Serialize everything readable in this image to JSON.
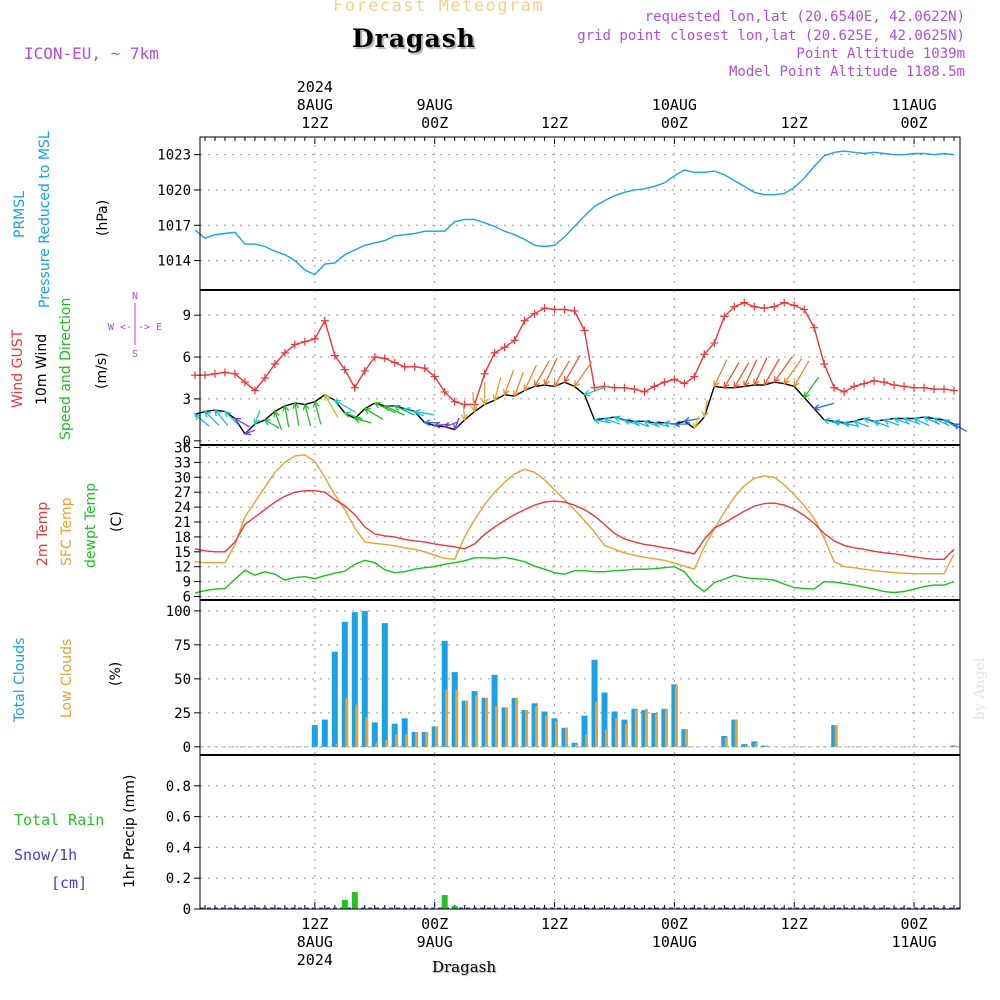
{
  "header": {
    "product": "Forecast Meteogram",
    "location": "Dragash",
    "model": "ICON-EU, ~ 7km",
    "requested": "requested lon,lat (20.6540E, 42.0622N)",
    "gridpoint": "grid point closest lon,lat (20.625E, 42.0625N)",
    "point_alt": "Point Altitude 1039m",
    "model_alt": "Model Point Altitude 1188.5m",
    "footer": "Dragash",
    "credit": "by Angel"
  },
  "colors": {
    "pressure": "#1aa1e6",
    "gust": "#e8393b",
    "wind": "#000000",
    "temp2m": "#e8393b",
    "sfctemp": "#e6a233",
    "dewpt": "#19c01e",
    "total_clouds": "#1aa1e6",
    "low_clouds": "#e6a233",
    "rain": "#25c024",
    "snow": "#3c3ccf",
    "axis_violet": "#b04fd6"
  },
  "time_axis": {
    "top_labels": [
      {
        "t": 12,
        "lines": [
          "2024",
          "8AUG",
          "12Z"
        ]
      },
      {
        "t": 24,
        "lines": [
          "9AUG",
          "00Z"
        ]
      },
      {
        "t": 36,
        "lines": [
          "12Z"
        ]
      },
      {
        "t": 48,
        "lines": [
          "10AUG",
          "00Z"
        ]
      },
      {
        "t": 60,
        "lines": [
          "12Z"
        ]
      },
      {
        "t": 72,
        "lines": [
          "11AUG",
          "00Z"
        ]
      }
    ],
    "bottom_labels": [
      {
        "t": 12,
        "lines": [
          "12Z",
          "8AUG",
          "2024"
        ]
      },
      {
        "t": 24,
        "lines": [
          "00Z",
          "9AUG"
        ]
      },
      {
        "t": 36,
        "lines": [
          "12Z"
        ]
      },
      {
        "t": 48,
        "lines": [
          "00Z",
          "10AUG"
        ]
      },
      {
        "t": 60,
        "lines": [
          "12Z"
        ]
      },
      {
        "t": 72,
        "lines": [
          "00Z",
          "11AUG"
        ]
      }
    ]
  },
  "chart_data": [
    {
      "type": "line",
      "name": "pressure",
      "ylabel_lines": [
        "PRMSL",
        "Pressure Reduced to MSL",
        "(hPa)"
      ],
      "ylim": [
        1011.5,
        1024.5
      ],
      "yticks": [
        1014,
        1017,
        1020,
        1023
      ],
      "x": [
        0,
        1,
        2,
        3,
        4,
        5,
        6,
        7,
        8,
        9,
        10,
        11,
        12,
        13,
        14,
        15,
        16,
        17,
        18,
        19,
        20,
        21,
        22,
        23,
        24,
        25,
        26,
        27,
        28,
        29,
        30,
        31,
        32,
        33,
        34,
        35,
        36,
        37,
        38,
        39,
        40,
        41,
        42,
        43,
        44,
        45,
        46,
        47,
        48,
        49,
        50,
        51,
        52,
        53,
        54,
        55,
        56,
        57,
        58,
        59,
        60,
        61,
        62,
        63,
        64,
        65,
        66,
        67,
        68,
        69,
        70,
        71,
        72,
        73,
        74,
        75,
        76
      ],
      "values": [
        1016.6,
        1015.9,
        1016.2,
        1016.3,
        1016.4,
        1015.4,
        1015.4,
        1015.2,
        1014.8,
        1014.5,
        1014.0,
        1013.2,
        1012.8,
        1013.7,
        1013.8,
        1014.5,
        1014.9,
        1015.3,
        1015.5,
        1015.7,
        1016.1,
        1016.2,
        1016.3,
        1016.5,
        1016.5,
        1016.5,
        1017.3,
        1017.5,
        1017.5,
        1017.2,
        1016.9,
        1016.5,
        1016.2,
        1015.8,
        1015.3,
        1015.2,
        1015.3,
        1016.0,
        1016.9,
        1017.8,
        1018.6,
        1019.1,
        1019.5,
        1019.8,
        1020.0,
        1020.1,
        1020.3,
        1020.6,
        1021.2,
        1021.7,
        1021.5,
        1021.5,
        1021.6,
        1021.3,
        1020.8,
        1020.3,
        1019.8,
        1019.6,
        1019.6,
        1019.7,
        1020.2,
        1021.0,
        1022.0,
        1022.9,
        1023.2,
        1023.3,
        1023.2,
        1023.1,
        1023.2,
        1023.1,
        1023.0,
        1023.0,
        1023.1,
        1023.1,
        1023.0,
        1023.1,
        1023.0
      ]
    },
    {
      "type": "line",
      "name": "wind",
      "ylabel_lines": [
        "Wind GUST",
        "10m Wind",
        "Speed and Direction",
        "(m/s)"
      ],
      "compass": [
        "N",
        "W <-|-> E",
        "S"
      ],
      "ylim": [
        -0.3,
        10.8
      ],
      "yticks": [
        0,
        3,
        6,
        9
      ],
      "gust_x": [
        0,
        1,
        2,
        3,
        4,
        5,
        6,
        7,
        8,
        9,
        10,
        11,
        12,
        13,
        14,
        15,
        16,
        17,
        18,
        19,
        20,
        21,
        22,
        23,
        24,
        25,
        26,
        27,
        28,
        29,
        30,
        31,
        32,
        33,
        34,
        35,
        36,
        37,
        38,
        39,
        40,
        41,
        42,
        43,
        44,
        45,
        46,
        47,
        48,
        49,
        50,
        51,
        52,
        53,
        54,
        55,
        56,
        57,
        58,
        59,
        60,
        61,
        62,
        63,
        64,
        65,
        66,
        67,
        68,
        69,
        70,
        71,
        72,
        73,
        74,
        75,
        76
      ],
      "gust": [
        4.7,
        4.7,
        4.8,
        4.9,
        4.8,
        4.2,
        3.6,
        4.5,
        5.5,
        6.3,
        6.9,
        7.1,
        7.3,
        8.6,
        6.1,
        5.1,
        3.8,
        5.0,
        6.0,
        5.9,
        5.6,
        5.3,
        5.3,
        5.2,
        4.6,
        3.5,
        2.8,
        2.6,
        2.6,
        4.8,
        6.3,
        6.7,
        7.2,
        8.6,
        9.1,
        9.5,
        9.4,
        9.4,
        9.3,
        7.9,
        3.8,
        3.9,
        3.8,
        3.8,
        3.7,
        3.5,
        3.9,
        4.2,
        4.4,
        4.1,
        4.6,
        6.2,
        7.0,
        8.9,
        9.6,
        9.9,
        9.6,
        9.5,
        9.6,
        9.9,
        9.7,
        9.4,
        8.1,
        5.5,
        3.8,
        3.5,
        3.9,
        4.1,
        4.3,
        4.2,
        4.0,
        3.9,
        3.8,
        3.8,
        3.7,
        3.7,
        3.6
      ],
      "wind": [
        1.9,
        2.1,
        2.2,
        2.1,
        1.6,
        0.5,
        1.2,
        1.5,
        2.1,
        2.5,
        2.7,
        2.6,
        2.8,
        3.3,
        2.9,
        2.0,
        1.6,
        2.3,
        2.7,
        2.5,
        2.5,
        2.3,
        2.1,
        1.3,
        1.1,
        1.0,
        0.8,
        1.5,
        2.1,
        2.6,
        2.9,
        3.3,
        3.2,
        3.6,
        3.9,
        4.0,
        3.9,
        4.2,
        3.9,
        3.3,
        1.5,
        1.6,
        1.7,
        1.5,
        1.4,
        1.4,
        1.3,
        1.3,
        1.2,
        1.4,
        0.9,
        1.7,
        3.9,
        3.8,
        3.8,
        3.9,
        4.0,
        4.0,
        4.2,
        4.1,
        3.9,
        3.1,
        2.3,
        1.5,
        1.4,
        1.3,
        1.4,
        1.6,
        1.4,
        1.5,
        1.6,
        1.6,
        1.6,
        1.7,
        1.6,
        1.5,
        1.2
      ],
      "arrows": {
        "x": [
          0,
          1,
          2,
          3,
          4,
          5,
          6,
          7,
          8,
          9,
          10,
          11,
          12,
          13,
          14,
          15,
          16,
          17,
          18,
          19,
          20,
          21,
          22,
          23,
          24,
          25,
          26,
          27,
          28,
          29,
          30,
          31,
          32,
          33,
          34,
          35,
          36,
          37,
          38,
          39,
          40,
          41,
          42,
          43,
          44,
          45,
          46,
          47,
          48,
          49,
          50,
          51,
          52,
          53,
          54,
          55,
          56,
          57,
          58,
          59,
          60,
          61,
          62,
          63,
          64,
          65,
          66,
          67,
          68,
          69,
          70,
          71,
          72,
          73,
          74,
          75,
          76
        ],
        "dir_deg": [
          310,
          315,
          320,
          315,
          300,
          250,
          200,
          300,
          340,
          350,
          350,
          345,
          345,
          330,
          300,
          290,
          285,
          300,
          295,
          295,
          295,
          290,
          280,
          270,
          265,
          250,
          200,
          175,
          175,
          180,
          195,
          200,
          200,
          205,
          210,
          205,
          210,
          210,
          215,
          250,
          280,
          290,
          290,
          290,
          290,
          290,
          285,
          280,
          270,
          260,
          200,
          190,
          205,
          210,
          210,
          205,
          205,
          210,
          215,
          215,
          210,
          215,
          255,
          285,
          285,
          285,
          290,
          290,
          290,
          290,
          290,
          290,
          295,
          295,
          295,
          300,
          300
        ],
        "colors": [
          "#19b7e6",
          "#19b7e6",
          "#19b7e6",
          "#1ac8c8",
          "#6a3fe0",
          "#6a3fe0",
          "#1ac8c8",
          "#21c060",
          "#21c021",
          "#21c021",
          "#21c021",
          "#21c021",
          "#21c021",
          "#9bd21e",
          "#1ac8c8",
          "#21c060",
          "#21c021",
          "#21c021",
          "#21c021",
          "#21c021",
          "#21c060",
          "#1ac8c8",
          "#19b7e6",
          "#2a6ee0",
          "#6a3fe0",
          "#6a3fe0",
          "#6a3fe0",
          "#e6a233",
          "#e6a233",
          "#e6a233",
          "#e6a233",
          "#e68a33",
          "#e68a33",
          "#e68a33",
          "#e67233",
          "#e67233",
          "#e67233",
          "#e65a33",
          "#e68a33",
          "#1ac8c8",
          "#19b7e6",
          "#19b7e6",
          "#19b7e6",
          "#19b7e6",
          "#19b7e6",
          "#19b7e6",
          "#19b7e6",
          "#19b7e6",
          "#2a6ee0",
          "#2a6ee0",
          "#c8d21e",
          "#e6a233",
          "#e68a33",
          "#e65a33",
          "#e65a33",
          "#e65a33",
          "#e65a33",
          "#e65a33",
          "#e65a33",
          "#e68a33",
          "#e68a33",
          "#21c021",
          "#2a6ee0",
          "#19b7e6",
          "#19b7e6",
          "#19b7e6",
          "#19b7e6",
          "#19b7e6",
          "#19b7e6",
          "#19b7e6",
          "#19b7e6",
          "#19b7e6",
          "#19b7e6",
          "#19b7e6",
          "#19b7e6",
          "#19b7e6",
          "#2a6ee0"
        ]
      }
    },
    {
      "type": "line",
      "name": "temperature",
      "ylabel_lines": [
        "2m Temp",
        "SFC Temp",
        "dewpt Temp",
        "(C)"
      ],
      "ylim": [
        5.3,
        36.5
      ],
      "yticks": [
        6,
        9,
        12,
        15,
        18,
        21,
        24,
        27,
        30,
        33,
        36
      ],
      "x": [
        0,
        1,
        2,
        3,
        4,
        5,
        6,
        7,
        8,
        9,
        10,
        11,
        12,
        13,
        14,
        15,
        16,
        17,
        18,
        19,
        20,
        21,
        22,
        23,
        24,
        25,
        26,
        27,
        28,
        29,
        30,
        31,
        32,
        33,
        34,
        35,
        36,
        37,
        38,
        39,
        40,
        41,
        42,
        43,
        44,
        45,
        46,
        47,
        48,
        49,
        50,
        51,
        52,
        53,
        54,
        55,
        56,
        57,
        58,
        59,
        60,
        61,
        62,
        63,
        64,
        65,
        66,
        67,
        68,
        69,
        70,
        71,
        72,
        73,
        74,
        75,
        76
      ],
      "temp2m": [
        15.6,
        15.2,
        15.0,
        15.0,
        17.0,
        20.5,
        22.0,
        23.5,
        25.0,
        26.2,
        27.0,
        27.3,
        27.3,
        27.0,
        25.5,
        24.3,
        22.5,
        20.0,
        18.6,
        18.2,
        18.0,
        17.5,
        17.2,
        17.0,
        16.6,
        16.3,
        16.0,
        15.6,
        16.6,
        18.5,
        20.0,
        21.3,
        22.5,
        23.5,
        24.4,
        25.0,
        25.2,
        25.0,
        24.4,
        23.5,
        22.2,
        20.5,
        18.7,
        17.6,
        17.0,
        16.5,
        16.2,
        15.8,
        15.5,
        15.0,
        14.6,
        17.5,
        19.8,
        20.8,
        22.0,
        23.2,
        24.2,
        24.7,
        24.8,
        24.4,
        23.6,
        22.3,
        20.7,
        18.7,
        17.2,
        16.3,
        15.8,
        15.5,
        15.1,
        14.8,
        14.6,
        14.3,
        14.0,
        13.7,
        13.5,
        13.5,
        15.5
      ],
      "sfctemp": [
        13.0,
        12.8,
        12.8,
        12.8,
        16.5,
        22.0,
        25.0,
        28.0,
        31.0,
        33.0,
        34.3,
        34.5,
        33.2,
        30.0,
        26.5,
        23.5,
        19.8,
        17.0,
        16.7,
        16.5,
        16.2,
        15.8,
        15.5,
        15.0,
        14.3,
        13.7,
        13.5,
        18.0,
        21.5,
        24.5,
        27.0,
        29.0,
        30.7,
        31.6,
        31.0,
        29.5,
        27.5,
        25.5,
        23.5,
        21.3,
        19.0,
        16.3,
        15.5,
        14.8,
        14.3,
        13.9,
        13.6,
        13.3,
        12.7,
        12.1,
        11.5,
        16.0,
        19.6,
        23.0,
        26.0,
        28.3,
        29.8,
        30.3,
        30.0,
        28.5,
        26.5,
        24.3,
        21.7,
        17.7,
        13.0,
        12.0,
        11.8,
        11.5,
        11.2,
        11.0,
        10.8,
        10.7,
        10.6,
        10.6,
        10.6,
        10.6,
        14.5
      ],
      "dewpt": [
        6.7,
        7.2,
        7.5,
        7.6,
        9.5,
        11.3,
        10.3,
        11.0,
        10.5,
        9.3,
        9.8,
        10.0,
        9.6,
        10.2,
        10.7,
        11.1,
        12.5,
        13.3,
        12.8,
        11.4,
        10.8,
        11.0,
        11.5,
        11.8,
        12.0,
        12.5,
        12.8,
        13.2,
        13.8,
        13.8,
        13.7,
        13.9,
        13.5,
        13.0,
        12.1,
        11.5,
        10.8,
        10.5,
        11.2,
        11.2,
        11.0,
        11.0,
        11.2,
        11.3,
        11.5,
        11.5,
        11.6,
        11.8,
        12.0,
        11.0,
        8.5,
        7.0,
        8.8,
        9.5,
        10.3,
        9.8,
        9.6,
        9.5,
        9.3,
        8.5,
        7.8,
        7.6,
        7.5,
        9.0,
        8.9,
        8.6,
        8.3,
        7.9,
        7.5,
        7.0,
        6.8,
        7.0,
        7.5,
        8.0,
        8.3,
        8.3,
        9.0
      ]
    },
    {
      "type": "bar",
      "name": "clouds",
      "ylabel_lines": [
        "Total Clouds",
        "Low Clouds",
        "(%)"
      ],
      "ylim": [
        -6,
        108
      ],
      "yticks": [
        0,
        25,
        50,
        75,
        100
      ],
      "x": [
        0,
        1,
        2,
        3,
        4,
        5,
        6,
        7,
        8,
        9,
        10,
        11,
        12,
        13,
        14,
        15,
        16,
        17,
        18,
        19,
        20,
        21,
        22,
        23,
        24,
        25,
        26,
        27,
        28,
        29,
        30,
        31,
        32,
        33,
        34,
        35,
        36,
        37,
        38,
        39,
        40,
        41,
        42,
        43,
        44,
        45,
        46,
        47,
        48,
        49,
        50,
        51,
        52,
        53,
        54,
        55,
        56,
        57,
        58,
        59,
        60,
        61,
        62,
        63,
        64,
        65,
        66,
        67,
        68,
        69,
        70,
        71,
        72,
        73,
        74,
        75,
        76
      ],
      "total": [
        0,
        0,
        0,
        0,
        0,
        0,
        0,
        0,
        0,
        0,
        0,
        0,
        16,
        20,
        70,
        92,
        99,
        100,
        18,
        91,
        17,
        21,
        11,
        11,
        15,
        78,
        55,
        34,
        41,
        36,
        53,
        29,
        36,
        27,
        32,
        26,
        21,
        14,
        3,
        23,
        64,
        40,
        26,
        20,
        28,
        27,
        25,
        28,
        46,
        13,
        0,
        0,
        0,
        8,
        20,
        2,
        4,
        1,
        0,
        0,
        0,
        0,
        0,
        0,
        16,
        0,
        0,
        0,
        0,
        0,
        0,
        0,
        0,
        0,
        0,
        0,
        1
      ],
      "low": [
        0,
        0,
        0,
        0,
        0,
        0,
        0,
        0,
        0,
        0,
        0,
        0,
        0,
        0,
        2,
        36,
        31,
        22,
        3,
        5,
        9,
        9,
        11,
        11,
        15,
        42,
        42,
        34,
        38,
        36,
        30,
        29,
        36,
        27,
        30,
        23,
        19,
        14,
        2,
        9,
        33,
        13,
        21,
        17,
        27,
        28,
        24,
        28,
        45,
        13,
        0,
        0,
        0,
        7,
        20,
        1,
        3,
        1,
        0,
        0,
        0,
        0,
        0,
        0,
        16,
        0,
        0,
        0,
        0,
        0,
        0,
        0,
        0,
        0,
        0,
        0,
        1
      ]
    },
    {
      "type": "bar",
      "name": "precipitation",
      "ylabel_lines": [
        "Total Rain",
        "Snow/1h",
        "[cm]",
        "1hr Precip (mm)"
      ],
      "ylim": [
        0,
        1.0
      ],
      "yticks": [
        0,
        0.2,
        0.4,
        0.6,
        0.8
      ],
      "ytick_labels": [
        "0",
        "0.2",
        "0.4",
        "0.6",
        "0.8"
      ],
      "x": [
        15,
        16,
        25,
        26,
        30
      ],
      "rain": [
        0.06,
        0.11,
        0.09,
        0.02,
        0.005
      ]
    }
  ]
}
